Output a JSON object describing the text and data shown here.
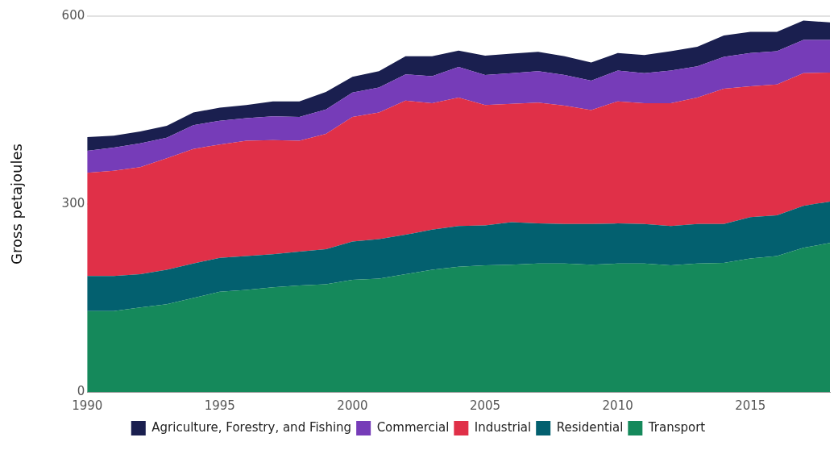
{
  "chart_data": {
    "type": "area",
    "ylabel": "Gross petajoules",
    "stacked": true,
    "x": [
      1990,
      1991,
      1992,
      1993,
      1994,
      1995,
      1996,
      1997,
      1998,
      1999,
      2000,
      2001,
      2002,
      2003,
      2004,
      2005,
      2006,
      2007,
      2008,
      2009,
      2010,
      2011,
      2012,
      2013,
      2014,
      2015,
      2016,
      2017,
      2018
    ],
    "xlim": [
      1990,
      2018
    ],
    "xticks": [
      1990,
      1995,
      2000,
      2005,
      2010,
      2015
    ],
    "ylim": [
      0,
      600
    ],
    "yticks": [
      0,
      300,
      600
    ],
    "grid": "y",
    "legend": "bottom",
    "series": [
      {
        "name": "Transport",
        "color": "#15895b",
        "values": [
          129,
          129,
          135,
          140,
          150,
          160,
          163,
          167,
          170,
          172,
          179,
          181,
          188,
          195,
          200,
          202,
          203,
          205,
          205,
          203,
          205,
          205,
          202,
          205,
          206,
          213,
          217,
          230,
          238
        ]
      },
      {
        "name": "Residential",
        "color": "#03606f",
        "values": [
          56,
          56,
          53,
          55,
          55,
          54,
          54,
          53,
          54,
          56,
          61,
          63,
          63,
          64,
          65,
          64,
          68,
          64,
          63,
          65,
          64,
          63,
          63,
          63,
          62,
          66,
          65,
          67,
          66
        ]
      },
      {
        "name": "Industrial",
        "color": "#e03048",
        "values": [
          165,
          168,
          171,
          178,
          183,
          181,
          184,
          182,
          177,
          184,
          199,
          202,
          214,
          202,
          205,
          192,
          189,
          193,
          189,
          182,
          195,
          193,
          196,
          202,
          216,
          209,
          209,
          212,
          206
        ]
      },
      {
        "name": "Commercial",
        "color": "#763cb8",
        "values": [
          35,
          37,
          38,
          33,
          38,
          38,
          36,
          38,
          38,
          39,
          39,
          40,
          42,
          43,
          49,
          48,
          49,
          50,
          49,
          47,
          49,
          48,
          52,
          50,
          51,
          53,
          53,
          53,
          52
        ]
      },
      {
        "name": "Agriculture, Forestry, and Fishing",
        "color": "#1a1f4f",
        "values": [
          22,
          19,
          19,
          19,
          20,
          21,
          21,
          24,
          25,
          28,
          25,
          26,
          29,
          32,
          26,
          31,
          31,
          31,
          30,
          29,
          28,
          29,
          31,
          31,
          34,
          34,
          31,
          31,
          28
        ]
      }
    ]
  }
}
